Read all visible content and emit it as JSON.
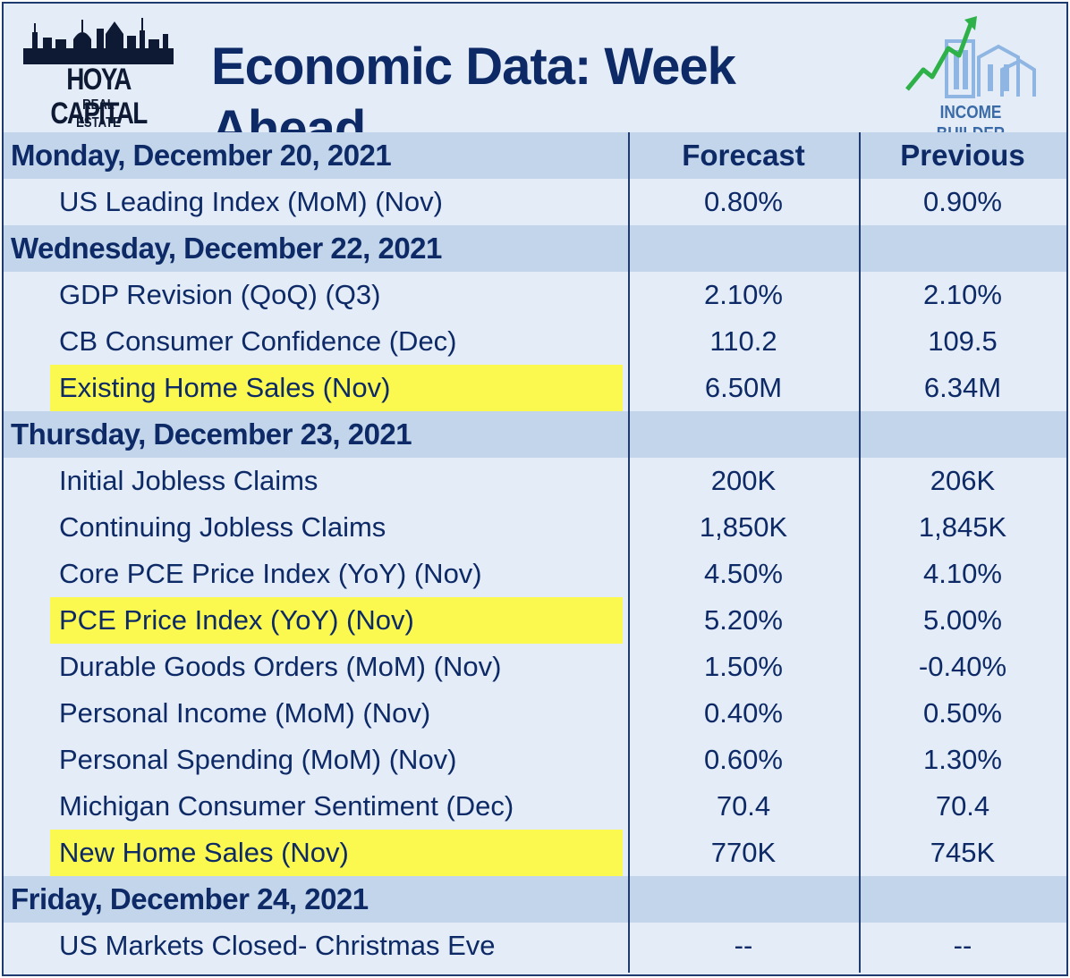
{
  "header": {
    "title": "Economic Data: Week Ahead",
    "logo_left": {
      "name": "HOYA CAPITAL",
      "sub": "REAL ESTATE"
    },
    "logo_right": {
      "name": "INCOME BUILDER"
    }
  },
  "columns": {
    "forecast": "Forecast",
    "previous": "Previous"
  },
  "sections": [
    {
      "day": "Monday, December 20, 2021",
      "rows": [
        {
          "label": "US Leading Index (MoM) (Nov)",
          "forecast": "0.80%",
          "previous": "0.90%",
          "highlight": false
        }
      ]
    },
    {
      "day": "Wednesday, December 22, 2021",
      "rows": [
        {
          "label": "GDP Revision (QoQ) (Q3)",
          "forecast": "2.10%",
          "previous": "2.10%",
          "highlight": false
        },
        {
          "label": "CB Consumer Confidence (Dec)",
          "forecast": "110.2",
          "previous": "109.5",
          "highlight": false
        },
        {
          "label": "Existing Home Sales (Nov)",
          "forecast": "6.50M",
          "previous": "6.34M",
          "highlight": true
        }
      ]
    },
    {
      "day": "Thursday, December 23, 2021",
      "rows": [
        {
          "label": "Initial Jobless Claims",
          "forecast": "200K",
          "previous": "206K",
          "highlight": false
        },
        {
          "label": "Continuing Jobless Claims",
          "forecast": "1,850K",
          "previous": "1,845K",
          "highlight": false
        },
        {
          "label": "Core PCE Price Index (YoY) (Nov)",
          "forecast": "4.50%",
          "previous": "4.10%",
          "highlight": false
        },
        {
          "label": "PCE Price Index (YoY) (Nov)",
          "forecast": "5.20%",
          "previous": "5.00%",
          "highlight": true
        },
        {
          "label": "Durable Goods Orders (MoM) (Nov)",
          "forecast": "1.50%",
          "previous": "-0.40%",
          "highlight": false
        },
        {
          "label": "Personal Income (MoM) (Nov)",
          "forecast": "0.40%",
          "previous": "0.50%",
          "highlight": false
        },
        {
          "label": "Personal Spending (MoM) (Nov)",
          "forecast": "0.60%",
          "previous": "1.30%",
          "highlight": false
        },
        {
          "label": "Michigan Consumer Sentiment (Dec)",
          "forecast": "70.4",
          "previous": "70.4",
          "highlight": false
        },
        {
          "label": "New Home Sales (Nov)",
          "forecast": "770K",
          "previous": "745K",
          "highlight": true
        }
      ]
    },
    {
      "day": "Friday, December 24, 2021",
      "rows": [
        {
          "label": "US Markets Closed- Christmas Eve",
          "forecast": "--",
          "previous": "--",
          "highlight": false
        }
      ]
    }
  ],
  "colors": {
    "background": "#e3ecf7",
    "day_row": "#c2d5ea",
    "text": "#0d2a66",
    "highlight": "#fbf94f",
    "border": "#1f3a6e"
  }
}
